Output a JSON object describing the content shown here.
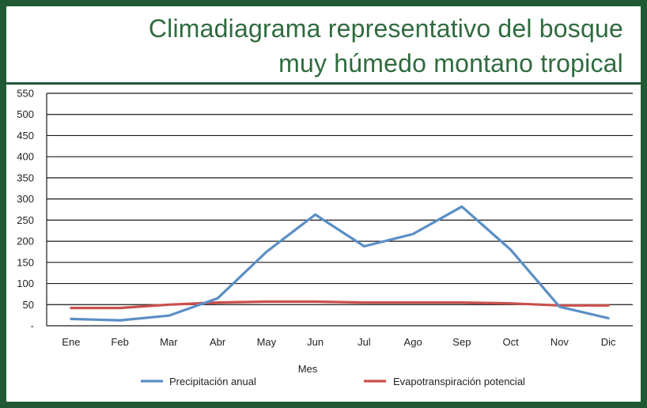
{
  "title_line1": "Climadiagrama representativo del bosque",
  "title_line2": "muy húmedo montano tropical",
  "colors": {
    "frame": "#1f5a34",
    "title": "#2f6b3f",
    "grid": "#1a1a1a",
    "precip": "#5b8fc6",
    "evap": "#c9504d"
  },
  "chart_data": {
    "type": "line",
    "title": "Climadiagrama representativo del bosque muy húmedo montano tropical",
    "xlabel": "Mes",
    "ylabel": "",
    "categories": [
      "Ene",
      "Feb",
      "Mar",
      "Abr",
      "May",
      "Jun",
      "Jul",
      "Ago",
      "Sep",
      "Oct",
      "Nov",
      "Dic"
    ],
    "ylim": [
      0,
      550
    ],
    "yticks": [
      0,
      50,
      100,
      150,
      200,
      250,
      300,
      350,
      400,
      450,
      500,
      550
    ],
    "ytick_labels": [
      "-",
      "50",
      "100",
      "150",
      "200",
      "250",
      "300",
      "350",
      "400",
      "450",
      "500",
      "550"
    ],
    "grid": "horizontal",
    "legend_position": "bottom",
    "series": [
      {
        "name": "Precipitación anual",
        "color": "#5b8fc6",
        "values": [
          16,
          13,
          24,
          65,
          175,
          263,
          188,
          217,
          282,
          180,
          45,
          18
        ]
      },
      {
        "name": "Evapotranspiración potencial",
        "color": "#c9504d",
        "values": [
          42,
          42,
          50,
          55,
          57,
          57,
          55,
          55,
          55,
          53,
          48,
          48
        ]
      }
    ]
  }
}
